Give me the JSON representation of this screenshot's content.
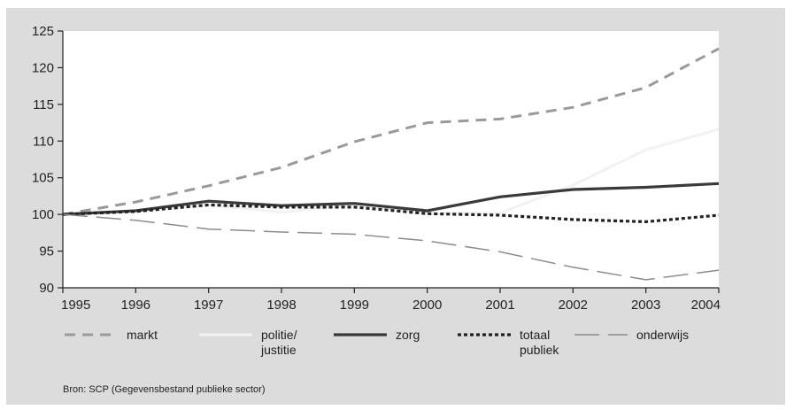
{
  "chart_data": {
    "type": "line",
    "x": [
      1995,
      1996,
      1997,
      1998,
      1999,
      2000,
      2001,
      2002,
      2003,
      2004
    ],
    "ylim": [
      90,
      125
    ],
    "yticks": [
      90,
      95,
      100,
      105,
      110,
      115,
      120,
      125
    ],
    "grid": false,
    "legend_position": "bottom",
    "series": [
      {
        "name": "markt",
        "values": [
          100,
          101.7,
          103.9,
          106.4,
          109.9,
          112.5,
          113.0,
          114.6,
          117.3,
          122.6
        ],
        "color": "#9a9a9a",
        "style": "dashed"
      },
      {
        "name": "politie/\njustitie",
        "values": [
          100,
          100.4,
          101.3,
          100.3,
          101.3,
          100.1,
          100.2,
          104.0,
          108.8,
          111.6
        ],
        "color": "#f2f2f2",
        "style": "solid"
      },
      {
        "name": "zorg",
        "values": [
          100,
          100.5,
          101.8,
          101.2,
          101.5,
          100.5,
          102.4,
          103.4,
          103.7,
          104.2
        ],
        "color": "#3a3a3a",
        "style": "solid-thick"
      },
      {
        "name": "totaal\npubliek",
        "values": [
          100,
          100.4,
          101.3,
          101.0,
          101.0,
          100.1,
          99.9,
          99.3,
          99.0,
          99.9
        ],
        "color": "#222222",
        "style": "dotted"
      },
      {
        "name": "onderwijs",
        "values": [
          100,
          99.2,
          98.0,
          97.6,
          97.3,
          96.4,
          94.9,
          92.8,
          91.1,
          92.4
        ],
        "color": "#8c8c8c",
        "style": "long-dash"
      }
    ],
    "source": "Bron: SCP (Gegevensbestand publieke sector)"
  }
}
